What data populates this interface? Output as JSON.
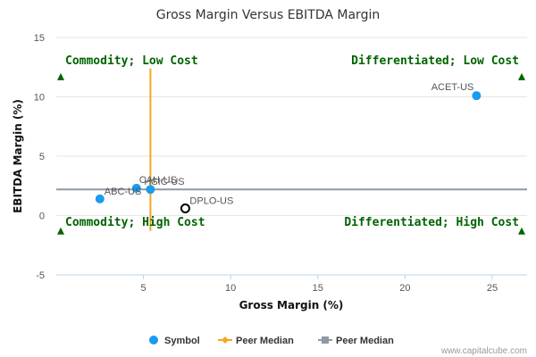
{
  "chart_data": {
    "type": "scatter",
    "title": "Gross Margin Versus EBITDA Margin",
    "xlabel": "Gross Margin (%)",
    "ylabel": "EBITDA Margin (%)",
    "xlim": [
      0,
      27
    ],
    "ylim": [
      -5,
      15
    ],
    "xticks": [
      5,
      10,
      15,
      20,
      25
    ],
    "yticks": [
      15,
      10,
      5,
      0,
      -5
    ],
    "points": [
      {
        "label": "ACET-US",
        "x": 24.1,
        "y": 10.1,
        "style": "filled"
      },
      {
        "label": "CAH-US",
        "x": 4.6,
        "y": 2.3,
        "style": "filled"
      },
      {
        "label": "HSIC-US",
        "x": 5.4,
        "y": 2.2,
        "style": "filled"
      },
      {
        "label": "ABC-US",
        "x": 2.5,
        "y": 1.4,
        "style": "filled"
      },
      {
        "label": "DPLO-US",
        "x": 7.4,
        "y": 0.6,
        "style": "highlight"
      }
    ],
    "peer_median_x": 5.4,
    "peer_median_x_range": [
      -1.3,
      12.4
    ],
    "peer_median_y": 2.2,
    "quadrants": {
      "top_left": "Commodity; Low Cost",
      "top_right": "Differentiated; Low Cost",
      "bottom_left": "Commodity; High Cost",
      "bottom_right": "Differentiated; High Cost"
    },
    "legend": [
      {
        "label": "Symbol",
        "marker": "circle",
        "color": "#1a9cef"
      },
      {
        "label": "Peer Median",
        "marker": "diamond",
        "color": "#f5a623"
      },
      {
        "label": "Peer Median",
        "marker": "square",
        "color": "#9099a3"
      }
    ],
    "colors": {
      "point": "#1a9cef",
      "vmedian": "#f5a623",
      "hmedian": "#9099a3",
      "quadrant": "#006400",
      "grid": "#e6e6e6"
    }
  },
  "credit": "www.capitalcube.com"
}
